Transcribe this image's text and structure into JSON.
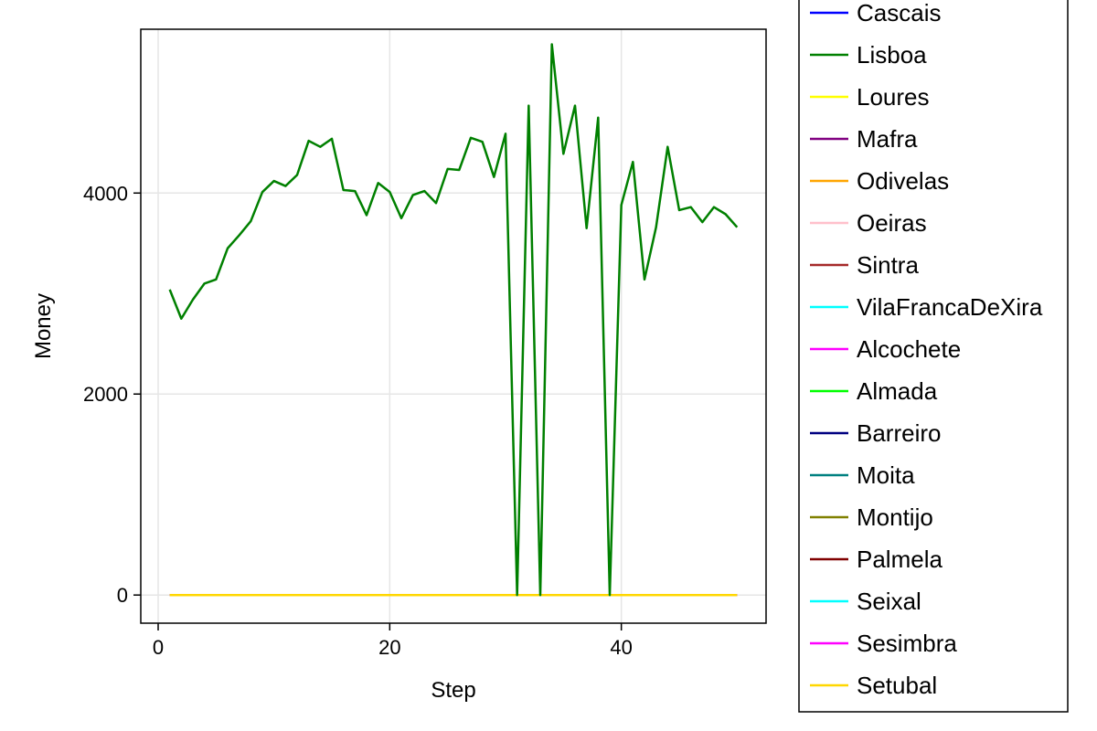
{
  "chart_data": {
    "type": "line",
    "xlabel": "Step",
    "ylabel": "Money",
    "xlim": [
      -1.5,
      52.5
    ],
    "ylim": [
      -280,
      5630
    ],
    "xticks": [
      0,
      20,
      40
    ],
    "yticks": [
      0,
      2000,
      4000
    ],
    "grid": true,
    "legend_position": "right-outside",
    "x": [
      1,
      2,
      3,
      4,
      5,
      6,
      7,
      8,
      9,
      10,
      11,
      12,
      13,
      14,
      15,
      16,
      17,
      18,
      19,
      20,
      21,
      22,
      23,
      24,
      25,
      26,
      27,
      28,
      29,
      30,
      31,
      32,
      33,
      34,
      35,
      36,
      37,
      38,
      39,
      40,
      41,
      42,
      43,
      44,
      45,
      46,
      47,
      48,
      49,
      50
    ],
    "series": [
      {
        "name": "Cascais",
        "color": "#0000ff",
        "values": [
          0,
          0,
          0,
          0,
          0,
          0,
          0,
          0,
          0,
          0,
          0,
          0,
          0,
          0,
          0,
          0,
          0,
          0,
          0,
          0,
          0,
          0,
          0,
          0,
          0,
          0,
          0,
          0,
          0,
          0,
          0,
          0,
          0,
          0,
          0,
          0,
          0,
          0,
          0,
          0,
          0,
          0,
          0,
          0,
          0,
          0,
          0,
          0,
          0,
          0
        ]
      },
      {
        "name": "Lisboa",
        "color": "#008000",
        "values": [
          3040,
          2750,
          2940,
          3100,
          3140,
          3450,
          3580,
          3720,
          4010,
          4120,
          4070,
          4180,
          4520,
          4460,
          4540,
          4030,
          4020,
          3780,
          4100,
          4010,
          3750,
          3980,
          4020,
          3900,
          4240,
          4230,
          4550,
          4510,
          4160,
          4590,
          0,
          4870,
          0,
          5480,
          4390,
          4870,
          3650,
          4750,
          0,
          3880,
          4310,
          3140,
          3660,
          4460,
          3830,
          3860,
          3710,
          3860,
          3790,
          3660
        ]
      },
      {
        "name": "Loures",
        "color": "#ffff00",
        "values": [
          0,
          0,
          0,
          0,
          0,
          0,
          0,
          0,
          0,
          0,
          0,
          0,
          0,
          0,
          0,
          0,
          0,
          0,
          0,
          0,
          0,
          0,
          0,
          0,
          0,
          0,
          0,
          0,
          0,
          0,
          0,
          0,
          0,
          0,
          0,
          0,
          0,
          0,
          0,
          0,
          0,
          0,
          0,
          0,
          0,
          0,
          0,
          0,
          0,
          0
        ]
      },
      {
        "name": "Mafra",
        "color": "#800080",
        "values": [
          0,
          0,
          0,
          0,
          0,
          0,
          0,
          0,
          0,
          0,
          0,
          0,
          0,
          0,
          0,
          0,
          0,
          0,
          0,
          0,
          0,
          0,
          0,
          0,
          0,
          0,
          0,
          0,
          0,
          0,
          0,
          0,
          0,
          0,
          0,
          0,
          0,
          0,
          0,
          0,
          0,
          0,
          0,
          0,
          0,
          0,
          0,
          0,
          0,
          0
        ]
      },
      {
        "name": "Odivelas",
        "color": "#ffa500",
        "values": [
          0,
          0,
          0,
          0,
          0,
          0,
          0,
          0,
          0,
          0,
          0,
          0,
          0,
          0,
          0,
          0,
          0,
          0,
          0,
          0,
          0,
          0,
          0,
          0,
          0,
          0,
          0,
          0,
          0,
          0,
          0,
          0,
          0,
          0,
          0,
          0,
          0,
          0,
          0,
          0,
          0,
          0,
          0,
          0,
          0,
          0,
          0,
          0,
          0,
          0
        ]
      },
      {
        "name": "Oeiras",
        "color": "#ffc0cb",
        "values": [
          0,
          0,
          0,
          0,
          0,
          0,
          0,
          0,
          0,
          0,
          0,
          0,
          0,
          0,
          0,
          0,
          0,
          0,
          0,
          0,
          0,
          0,
          0,
          0,
          0,
          0,
          0,
          0,
          0,
          0,
          0,
          0,
          0,
          0,
          0,
          0,
          0,
          0,
          0,
          0,
          0,
          0,
          0,
          0,
          0,
          0,
          0,
          0,
          0,
          0
        ]
      },
      {
        "name": "Sintra",
        "color": "#a52a2a",
        "values": [
          0,
          0,
          0,
          0,
          0,
          0,
          0,
          0,
          0,
          0,
          0,
          0,
          0,
          0,
          0,
          0,
          0,
          0,
          0,
          0,
          0,
          0,
          0,
          0,
          0,
          0,
          0,
          0,
          0,
          0,
          0,
          0,
          0,
          0,
          0,
          0,
          0,
          0,
          0,
          0,
          0,
          0,
          0,
          0,
          0,
          0,
          0,
          0,
          0,
          0
        ]
      },
      {
        "name": "VilaFrancaDeXira",
        "color": "#00ffff",
        "values": [
          0,
          0,
          0,
          0,
          0,
          0,
          0,
          0,
          0,
          0,
          0,
          0,
          0,
          0,
          0,
          0,
          0,
          0,
          0,
          0,
          0,
          0,
          0,
          0,
          0,
          0,
          0,
          0,
          0,
          0,
          0,
          0,
          0,
          0,
          0,
          0,
          0,
          0,
          0,
          0,
          0,
          0,
          0,
          0,
          0,
          0,
          0,
          0,
          0,
          0
        ]
      },
      {
        "name": "Alcochete",
        "color": "#ff00ff",
        "values": [
          0,
          0,
          0,
          0,
          0,
          0,
          0,
          0,
          0,
          0,
          0,
          0,
          0,
          0,
          0,
          0,
          0,
          0,
          0,
          0,
          0,
          0,
          0,
          0,
          0,
          0,
          0,
          0,
          0,
          0,
          0,
          0,
          0,
          0,
          0,
          0,
          0,
          0,
          0,
          0,
          0,
          0,
          0,
          0,
          0,
          0,
          0,
          0,
          0,
          0
        ]
      },
      {
        "name": "Almada",
        "color": "#00ff00",
        "values": [
          0,
          0,
          0,
          0,
          0,
          0,
          0,
          0,
          0,
          0,
          0,
          0,
          0,
          0,
          0,
          0,
          0,
          0,
          0,
          0,
          0,
          0,
          0,
          0,
          0,
          0,
          0,
          0,
          0,
          0,
          0,
          0,
          0,
          0,
          0,
          0,
          0,
          0,
          0,
          0,
          0,
          0,
          0,
          0,
          0,
          0,
          0,
          0,
          0,
          0
        ]
      },
      {
        "name": "Barreiro",
        "color": "#000080",
        "values": [
          0,
          0,
          0,
          0,
          0,
          0,
          0,
          0,
          0,
          0,
          0,
          0,
          0,
          0,
          0,
          0,
          0,
          0,
          0,
          0,
          0,
          0,
          0,
          0,
          0,
          0,
          0,
          0,
          0,
          0,
          0,
          0,
          0,
          0,
          0,
          0,
          0,
          0,
          0,
          0,
          0,
          0,
          0,
          0,
          0,
          0,
          0,
          0,
          0,
          0
        ]
      },
      {
        "name": "Moita",
        "color": "#008080",
        "values": [
          0,
          0,
          0,
          0,
          0,
          0,
          0,
          0,
          0,
          0,
          0,
          0,
          0,
          0,
          0,
          0,
          0,
          0,
          0,
          0,
          0,
          0,
          0,
          0,
          0,
          0,
          0,
          0,
          0,
          0,
          0,
          0,
          0,
          0,
          0,
          0,
          0,
          0,
          0,
          0,
          0,
          0,
          0,
          0,
          0,
          0,
          0,
          0,
          0,
          0
        ]
      },
      {
        "name": "Montijo",
        "color": "#808000",
        "values": [
          0,
          0,
          0,
          0,
          0,
          0,
          0,
          0,
          0,
          0,
          0,
          0,
          0,
          0,
          0,
          0,
          0,
          0,
          0,
          0,
          0,
          0,
          0,
          0,
          0,
          0,
          0,
          0,
          0,
          0,
          0,
          0,
          0,
          0,
          0,
          0,
          0,
          0,
          0,
          0,
          0,
          0,
          0,
          0,
          0,
          0,
          0,
          0,
          0,
          0
        ]
      },
      {
        "name": "Palmela",
        "color": "#800000",
        "values": [
          0,
          0,
          0,
          0,
          0,
          0,
          0,
          0,
          0,
          0,
          0,
          0,
          0,
          0,
          0,
          0,
          0,
          0,
          0,
          0,
          0,
          0,
          0,
          0,
          0,
          0,
          0,
          0,
          0,
          0,
          0,
          0,
          0,
          0,
          0,
          0,
          0,
          0,
          0,
          0,
          0,
          0,
          0,
          0,
          0,
          0,
          0,
          0,
          0,
          0
        ]
      },
      {
        "name": "Seixal",
        "color": "#00ffff",
        "values": [
          0,
          0,
          0,
          0,
          0,
          0,
          0,
          0,
          0,
          0,
          0,
          0,
          0,
          0,
          0,
          0,
          0,
          0,
          0,
          0,
          0,
          0,
          0,
          0,
          0,
          0,
          0,
          0,
          0,
          0,
          0,
          0,
          0,
          0,
          0,
          0,
          0,
          0,
          0,
          0,
          0,
          0,
          0,
          0,
          0,
          0,
          0,
          0,
          0,
          0
        ]
      },
      {
        "name": "Sesimbra",
        "color": "#ff00ff",
        "values": [
          0,
          0,
          0,
          0,
          0,
          0,
          0,
          0,
          0,
          0,
          0,
          0,
          0,
          0,
          0,
          0,
          0,
          0,
          0,
          0,
          0,
          0,
          0,
          0,
          0,
          0,
          0,
          0,
          0,
          0,
          0,
          0,
          0,
          0,
          0,
          0,
          0,
          0,
          0,
          0,
          0,
          0,
          0,
          0,
          0,
          0,
          0,
          0,
          0,
          0
        ]
      },
      {
        "name": "Setubal",
        "color": "#ffd700",
        "values": [
          0,
          0,
          0,
          0,
          0,
          0,
          0,
          0,
          0,
          0,
          0,
          0,
          0,
          0,
          0,
          0,
          0,
          0,
          0,
          0,
          0,
          0,
          0,
          0,
          0,
          0,
          0,
          0,
          0,
          0,
          0,
          0,
          0,
          0,
          0,
          0,
          0,
          0,
          0,
          0,
          0,
          0,
          0,
          0,
          0,
          0,
          0,
          0,
          0,
          0
        ]
      }
    ]
  }
}
